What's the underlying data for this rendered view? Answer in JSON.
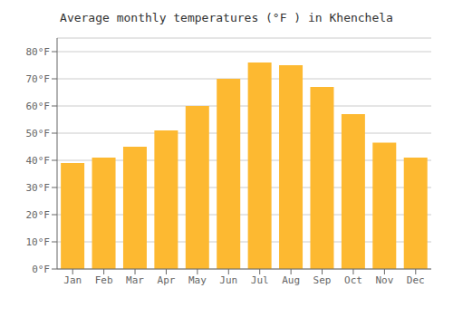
{
  "chart_data": {
    "type": "bar",
    "title": "Average monthly temperatures (°F ) in Khenchela",
    "categories": [
      "Jan",
      "Feb",
      "Mar",
      "Apr",
      "May",
      "Jun",
      "Jul",
      "Aug",
      "Sep",
      "Oct",
      "Nov",
      "Dec"
    ],
    "values": [
      39,
      41,
      45,
      51,
      60,
      70,
      76,
      75,
      67,
      57,
      46.5,
      41
    ],
    "color": "#FDB931",
    "ylim": [
      0,
      85
    ],
    "yticks": [
      {
        "value": 0,
        "label": "0°F"
      },
      {
        "value": 10,
        "label": "10°F"
      },
      {
        "value": 20,
        "label": "20°F"
      },
      {
        "value": 30,
        "label": "30°F"
      },
      {
        "value": 40,
        "label": "40°F"
      },
      {
        "value": 50,
        "label": "50°F"
      },
      {
        "value": 60,
        "label": "60°F"
      },
      {
        "value": 70,
        "label": "70°F"
      },
      {
        "value": 80,
        "label": "80°F"
      }
    ],
    "grid": true
  }
}
